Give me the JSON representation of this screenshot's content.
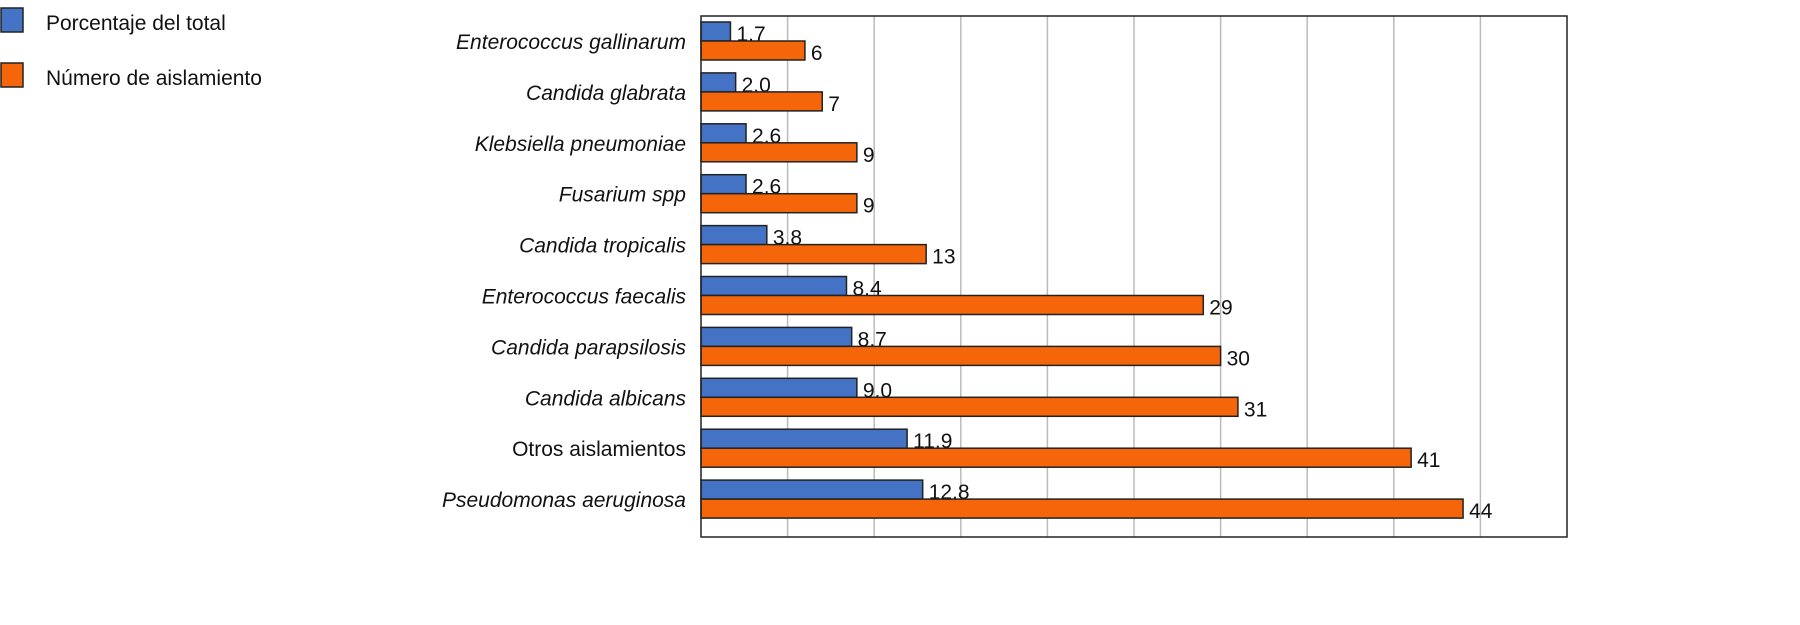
{
  "chart_data": {
    "type": "bar",
    "orientation": "horizontal",
    "title": "",
    "xlabel": "",
    "ylabel": "",
    "xlim": [
      0,
      50
    ],
    "grid": true,
    "legend_position": "top-left",
    "categories": [
      "Enterococcus gallinarum",
      "Candida glabrata",
      "Klebsiella pneumoniae",
      "Fusarium spp",
      "Candida tropicalis",
      "Enterococcus faecalis",
      "Candida parapsilosis",
      "Candida albicans",
      "Otros aislamientos",
      "Pseudomonas aeruginosa"
    ],
    "italic": [
      true,
      true,
      true,
      true,
      true,
      true,
      true,
      true,
      false,
      true
    ],
    "series": [
      {
        "name": "Porcentaje del total",
        "color": "#4472c4",
        "values": [
          1.7,
          2.0,
          2.6,
          2.6,
          3.8,
          8.4,
          8.7,
          9.0,
          11.9,
          12.8
        ],
        "labels": [
          "1.7",
          "2.0",
          "2.6",
          "2.6",
          "3.8",
          "8.4",
          "8.7",
          "9.0",
          "11.9",
          "12.8"
        ]
      },
      {
        "name": "Número de aislamiento",
        "color": "#f5650a",
        "values": [
          6,
          7,
          9,
          9,
          13,
          29,
          30,
          31,
          41,
          44
        ],
        "labels": [
          "6",
          "7",
          "9",
          "9",
          "13",
          "29",
          "30",
          "31",
          "41",
          "44"
        ]
      }
    ]
  }
}
